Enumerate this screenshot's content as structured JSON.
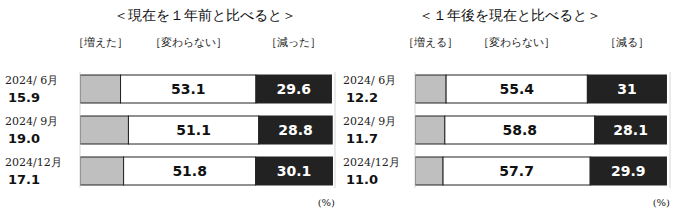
{
  "chart_data": [
    {
      "type": "bar",
      "orientation": "horizontal",
      "stacked": true,
      "data_labels": true,
      "tick_labels": false,
      "title": "＜現在を１年前と比べると＞",
      "xlabel": "(%)",
      "categories": [
        "2024/ 6月",
        "2024/ 9月",
        "2024/12月"
      ],
      "xlim": [
        0,
        100
      ],
      "series": [
        {
          "name": "［増えた］",
          "color": "#bfbfbf",
          "values": [
            15.9,
            19.0,
            17.1
          ],
          "value_labels": [
            "15.9",
            "19.0",
            "17.1"
          ]
        },
        {
          "name": "［変わらない］",
          "color": "#ffffff",
          "values": [
            53.1,
            51.1,
            51.8
          ]
        },
        {
          "name": "［減った］",
          "color": "#222222",
          "values": [
            29.6,
            28.8,
            30.1
          ]
        }
      ]
    },
    {
      "type": "bar",
      "orientation": "horizontal",
      "stacked": true,
      "data_labels": true,
      "tick_labels": false,
      "title": "＜１年後を現在と比べると＞",
      "xlabel": "(%)",
      "categories": [
        "2024/ 6月",
        "2024/ 9月",
        "2024/12月"
      ],
      "xlim": [
        0,
        100
      ],
      "series": [
        {
          "name": "［増える］",
          "color": "#bfbfbf",
          "values": [
            12.2,
            11.7,
            11.0
          ],
          "value_labels": [
            "12.2",
            "11.7",
            "11.0"
          ]
        },
        {
          "name": "［変わらない］",
          "color": "#ffffff",
          "values": [
            55.4,
            58.8,
            57.7
          ]
        },
        {
          "name": "［減る］",
          "color": "#222222",
          "values": [
            31.0,
            28.1,
            29.9
          ]
        }
      ]
    }
  ]
}
